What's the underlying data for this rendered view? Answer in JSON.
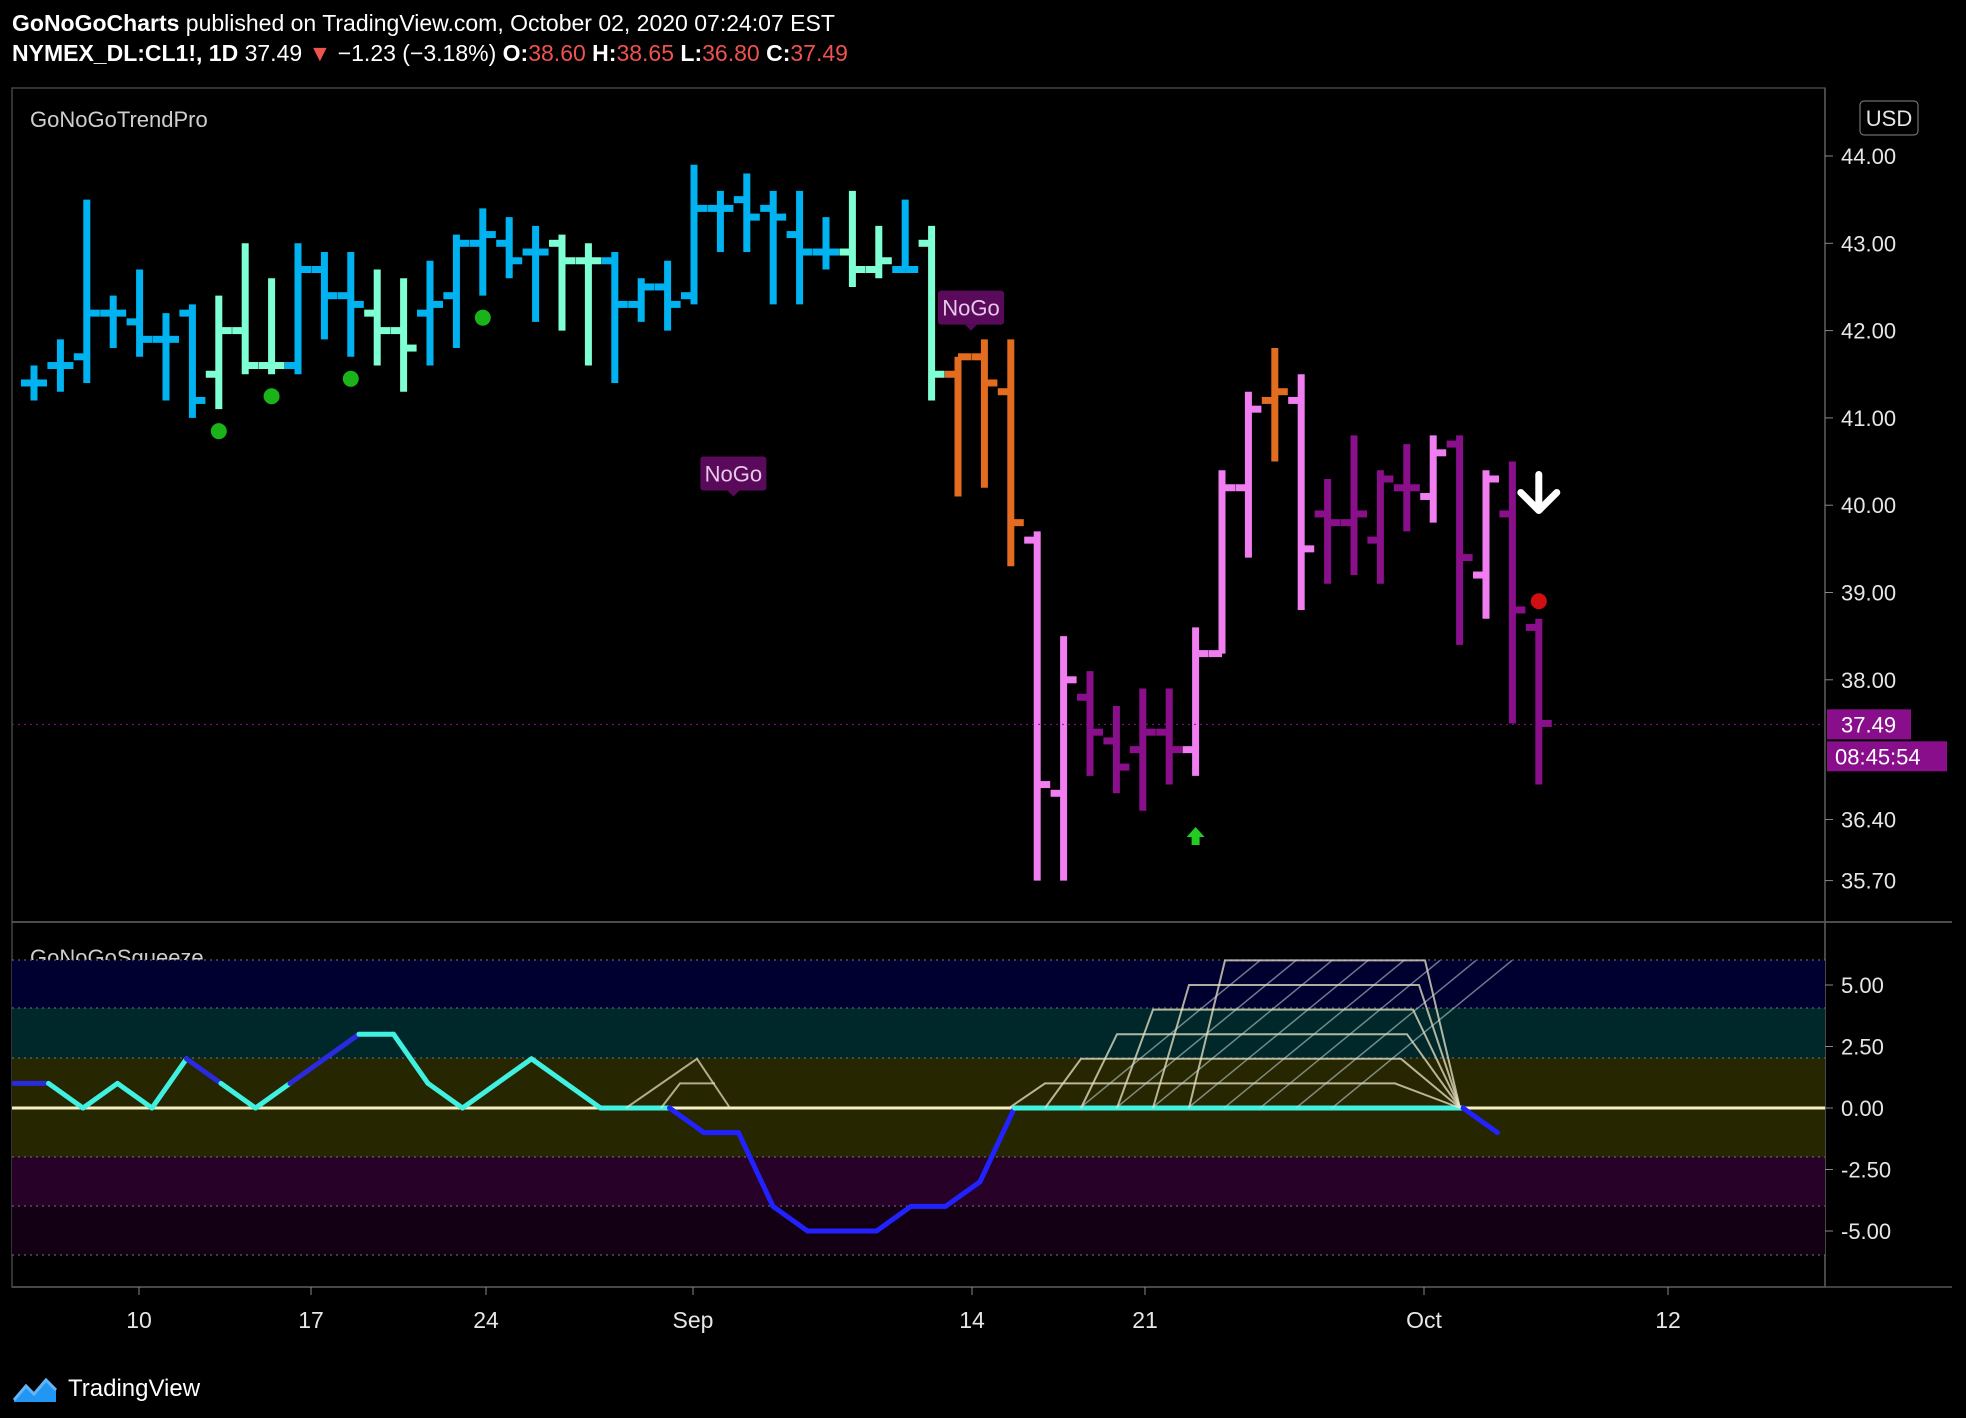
{
  "header": {
    "publisher": "GoNoGoCharts",
    "published_text": "published on TradingView.com, October 02, 2020 07:24:07 EST",
    "symbol": "NYMEX_DL:CL1!, 1D",
    "last": "37.49",
    "down_arrow": "▼",
    "change": "−1.23 (−3.18%)",
    "o_label": "O:",
    "o_val": "38.60",
    "h_label": "H:",
    "h_val": "38.65",
    "l_label": "L:",
    "l_val": "36.80",
    "c_label": "C:",
    "c_val": "37.49"
  },
  "footer": {
    "brand": "TradingView",
    "logo_icon": "tradingview-logo-icon"
  },
  "colors": {
    "strong_go": "#00b3f0",
    "weak_go": "#7fffd4",
    "weak_nogo": "#e26c1f",
    "nogo": "#f07ef0",
    "strong_nogo": "#8a0f8a",
    "price_tag": "#880e8c"
  },
  "chart_data": [
    {
      "type": "ohlc",
      "indicator_label": "GoNoGoTrendPro",
      "currency": "USD",
      "y_ticks": [
        "44.00",
        "43.00",
        "42.00",
        "41.00",
        "40.00",
        "39.00",
        "38.00",
        "36.40",
        "35.70"
      ],
      "x_ticks": [
        {
          "label": "10",
          "date": "2020-08-10"
        },
        {
          "label": "17",
          "date": "2020-08-17"
        },
        {
          "label": "24",
          "date": "2020-08-24"
        },
        {
          "label": "Sep",
          "date": "2020-09-01"
        },
        {
          "label": "14",
          "date": "2020-09-14"
        },
        {
          "label": "21",
          "date": "2020-09-21"
        },
        {
          "label": "Oct",
          "date": "2020-10-01"
        },
        {
          "label": "12",
          "date": "2020-10-12"
        }
      ],
      "last_price_label": "37.49",
      "countdown_label": "08:45:54",
      "annotations": [
        {
          "text": "NoGo",
          "date": "2020-09-08",
          "price": 40.1
        },
        {
          "text": "NoGo",
          "date": "2020-09-21",
          "price": 42.0
        }
      ],
      "bars": [
        {
          "d": "2020-08-03",
          "o": 41.4,
          "h": 41.6,
          "l": 41.2,
          "c": 41.4,
          "s": "strong_go"
        },
        {
          "d": "2020-08-04",
          "o": 41.6,
          "h": 41.9,
          "l": 41.3,
          "c": 41.6,
          "s": "strong_go"
        },
        {
          "d": "2020-08-05",
          "o": 41.7,
          "h": 43.5,
          "l": 41.4,
          "c": 42.2,
          "s": "strong_go"
        },
        {
          "d": "2020-08-06",
          "o": 42.2,
          "h": 42.4,
          "l": 41.8,
          "c": 42.2,
          "s": "strong_go"
        },
        {
          "d": "2020-08-07",
          "o": 42.1,
          "h": 42.7,
          "l": 41.7,
          "c": 41.9,
          "s": "strong_go"
        },
        {
          "d": "2020-08-10",
          "o": 41.9,
          "h": 42.2,
          "l": 41.2,
          "c": 41.9,
          "s": "strong_go"
        },
        {
          "d": "2020-08-11",
          "o": 42.2,
          "h": 42.3,
          "l": 41.0,
          "c": 41.2,
          "s": "strong_go"
        },
        {
          "d": "2020-08-12",
          "o": 41.5,
          "h": 42.4,
          "l": 41.1,
          "c": 42.0,
          "s": "weak_go"
        },
        {
          "d": "2020-08-13",
          "o": 42.0,
          "h": 43.0,
          "l": 41.5,
          "c": 41.6,
          "s": "weak_go"
        },
        {
          "d": "2020-08-14",
          "o": 41.6,
          "h": 42.6,
          "l": 41.5,
          "c": 41.6,
          "s": "weak_go"
        },
        {
          "d": "2020-08-17",
          "o": 41.6,
          "h": 43.0,
          "l": 41.5,
          "c": 42.7,
          "s": "strong_go"
        },
        {
          "d": "2020-08-18",
          "o": 42.7,
          "h": 42.9,
          "l": 41.9,
          "c": 42.4,
          "s": "strong_go"
        },
        {
          "d": "2020-08-19",
          "o": 42.4,
          "h": 42.9,
          "l": 41.7,
          "c": 42.3,
          "s": "strong_go"
        },
        {
          "d": "2020-08-20",
          "o": 42.2,
          "h": 42.7,
          "l": 41.6,
          "c": 42.0,
          "s": "weak_go"
        },
        {
          "d": "2020-08-21",
          "o": 42.0,
          "h": 42.6,
          "l": 41.3,
          "c": 41.8,
          "s": "weak_go"
        },
        {
          "d": "2020-08-24",
          "o": 42.2,
          "h": 42.8,
          "l": 41.6,
          "c": 42.3,
          "s": "strong_go"
        },
        {
          "d": "2020-08-25",
          "o": 42.4,
          "h": 43.1,
          "l": 41.8,
          "c": 43.0,
          "s": "strong_go"
        },
        {
          "d": "2020-08-26",
          "o": 43.0,
          "h": 43.4,
          "l": 42.4,
          "c": 43.1,
          "s": "strong_go"
        },
        {
          "d": "2020-08-27",
          "o": 43.0,
          "h": 43.3,
          "l": 42.6,
          "c": 42.8,
          "s": "strong_go"
        },
        {
          "d": "2020-08-28",
          "o": 42.9,
          "h": 43.2,
          "l": 42.1,
          "c": 42.9,
          "s": "strong_go"
        },
        {
          "d": "2020-08-31",
          "o": 43.0,
          "h": 43.1,
          "l": 42.0,
          "c": 42.8,
          "s": "weak_go"
        },
        {
          "d": "2020-09-01",
          "o": 42.8,
          "h": 43.0,
          "l": 41.6,
          "c": 42.8,
          "s": "weak_go"
        },
        {
          "d": "2020-09-02",
          "o": 42.8,
          "h": 42.9,
          "l": 41.4,
          "c": 42.3,
          "s": "strong_go"
        },
        {
          "d": "2020-09-03",
          "o": 42.3,
          "h": 42.6,
          "l": 42.1,
          "c": 42.5,
          "s": "strong_go"
        },
        {
          "d": "2020-09-04",
          "o": 42.5,
          "h": 42.8,
          "l": 42.0,
          "c": 42.3,
          "s": "strong_go"
        },
        {
          "d": "2020-09-07",
          "o": 42.4,
          "h": 43.9,
          "l": 42.3,
          "c": 43.4,
          "s": "strong_go"
        },
        {
          "d": "2020-09-08",
          "o": 43.4,
          "h": 43.6,
          "l": 42.9,
          "c": 43.4,
          "s": "strong_go"
        },
        {
          "d": "2020-09-09",
          "o": 43.5,
          "h": 43.8,
          "l": 42.9,
          "c": 43.3,
          "s": "strong_go"
        },
        {
          "d": "2020-09-10",
          "o": 43.4,
          "h": 43.6,
          "l": 42.3,
          "c": 43.3,
          "s": "strong_go"
        },
        {
          "d": "2020-09-11",
          "o": 43.1,
          "h": 43.6,
          "l": 42.3,
          "c": 42.9,
          "s": "strong_go"
        },
        {
          "d": "2020-09-14",
          "o": 42.9,
          "h": 43.3,
          "l": 42.7,
          "c": 42.9,
          "s": "strong_go"
        },
        {
          "d": "2020-09-15",
          "o": 42.9,
          "h": 43.6,
          "l": 42.5,
          "c": 42.7,
          "s": "weak_go"
        },
        {
          "d": "2020-09-16",
          "o": 42.7,
          "h": 43.2,
          "l": 42.6,
          "c": 42.8,
          "s": "weak_go"
        },
        {
          "d": "2020-09-17",
          "o": 42.7,
          "h": 43.5,
          "l": 42.7,
          "c": 42.7,
          "s": "strong_go"
        },
        {
          "d": "2020-09-18",
          "o": 43.0,
          "h": 43.2,
          "l": 41.2,
          "c": 41.5,
          "s": "weak_go"
        },
        {
          "d": "2020-09-21",
          "o": 41.5,
          "h": 41.7,
          "l": 40.1,
          "c": 41.7,
          "s": "weak_nogo"
        },
        {
          "d": "2020-09-22",
          "o": 41.7,
          "h": 41.9,
          "l": 40.2,
          "c": 41.4,
          "s": "weak_nogo"
        },
        {
          "d": "2020-09-23",
          "o": 41.3,
          "h": 41.9,
          "l": 39.3,
          "c": 39.8,
          "s": "weak_nogo"
        },
        {
          "d": "2020-09-24",
          "o": 39.6,
          "h": 39.7,
          "l": 35.7,
          "c": 36.8,
          "s": "nogo"
        },
        {
          "d": "2020-09-25",
          "o": 36.7,
          "h": 38.5,
          "l": 35.7,
          "c": 38.0,
          "s": "nogo"
        },
        {
          "d": "2020-09-28",
          "o": 37.8,
          "h": 38.1,
          "l": 36.9,
          "c": 37.4,
          "s": "strong_nogo"
        },
        {
          "d": "2020-09-29",
          "o": 37.3,
          "h": 37.7,
          "l": 36.7,
          "c": 37.0,
          "s": "strong_nogo"
        },
        {
          "d": "2020-09-30",
          "o": 37.2,
          "h": 37.9,
          "l": 36.5,
          "c": 37.4,
          "s": "strong_nogo"
        },
        {
          "d": "2020-10-01",
          "o": 37.4,
          "h": 37.9,
          "l": 36.8,
          "c": 37.2,
          "s": "strong_nogo"
        },
        {
          "d": "2020-10-02",
          "o": 37.2,
          "h": 38.6,
          "l": 36.9,
          "c": 38.3,
          "s": "nogo"
        },
        {
          "d": "2020-10-05",
          "o": 38.3,
          "h": 40.4,
          "l": 38.3,
          "c": 40.2,
          "s": "nogo"
        },
        {
          "d": "2020-10-06",
          "o": 40.2,
          "h": 41.3,
          "l": 39.4,
          "c": 41.1,
          "s": "nogo"
        },
        {
          "d": "2020-10-07",
          "o": 41.2,
          "h": 41.8,
          "l": 40.5,
          "c": 41.3,
          "s": "weak_nogo"
        },
        {
          "d": "2020-10-08",
          "o": 41.2,
          "h": 41.5,
          "l": 38.8,
          "c": 39.5,
          "s": "nogo"
        },
        {
          "d": "2020-10-09",
          "o": 39.9,
          "h": 40.3,
          "l": 39.1,
          "c": 39.8,
          "s": "strong_nogo"
        },
        {
          "d": "2020-10-12",
          "o": 39.8,
          "h": 40.8,
          "l": 39.2,
          "c": 39.9,
          "s": "strong_nogo"
        },
        {
          "d": "2020-10-13",
          "o": 39.6,
          "h": 40.4,
          "l": 39.1,
          "c": 40.3,
          "s": "strong_nogo"
        },
        {
          "d": "2020-10-14",
          "o": 40.2,
          "h": 40.7,
          "l": 39.7,
          "c": 40.2,
          "s": "strong_nogo"
        },
        {
          "d": "2020-10-15",
          "o": 40.1,
          "h": 40.8,
          "l": 39.8,
          "c": 40.6,
          "s": "nogo"
        },
        {
          "d": "2020-10-16",
          "o": 40.7,
          "h": 40.8,
          "l": 38.4,
          "c": 39.4,
          "s": "strong_nogo"
        },
        {
          "d": "2020-10-19",
          "o": 39.2,
          "h": 40.4,
          "l": 38.7,
          "c": 40.3,
          "s": "nogo"
        },
        {
          "d": "2020-10-20",
          "o": 39.9,
          "h": 40.5,
          "l": 37.5,
          "c": 38.8,
          "s": "strong_nogo"
        },
        {
          "d": "2020-10-21",
          "o": 38.6,
          "h": 38.7,
          "l": 36.8,
          "c": 37.5,
          "s": "strong_nogo"
        }
      ],
      "go_dots": [
        "2020-08-12",
        "2020-08-14",
        "2020-08-19",
        "2020-08-26"
      ],
      "nogo_dot": {
        "date": "2020-10-21",
        "price": 38.9
      },
      "up_arrow": {
        "date": "2020-10-02",
        "price": 36.2
      },
      "down_arrow_marker": {
        "date": "2020-10-21",
        "price": 40.1
      }
    },
    {
      "type": "line",
      "indicator_label": "GoNoGoSqueeze",
      "y_ticks": [
        "5.00",
        "2.50",
        "0.00",
        "-2.50",
        "-5.00"
      ],
      "values": [
        1,
        1,
        0,
        1,
        0,
        2,
        1,
        0,
        1,
        2,
        3,
        3,
        1,
        0,
        1,
        2,
        1,
        0,
        0,
        0,
        -1,
        -1,
        -4,
        -5,
        -5,
        -5,
        -4,
        -4,
        -3,
        0,
        0,
        0,
        0,
        0,
        0,
        0,
        0,
        0,
        0,
        0,
        0,
        0,
        0,
        -1
      ]
    }
  ]
}
